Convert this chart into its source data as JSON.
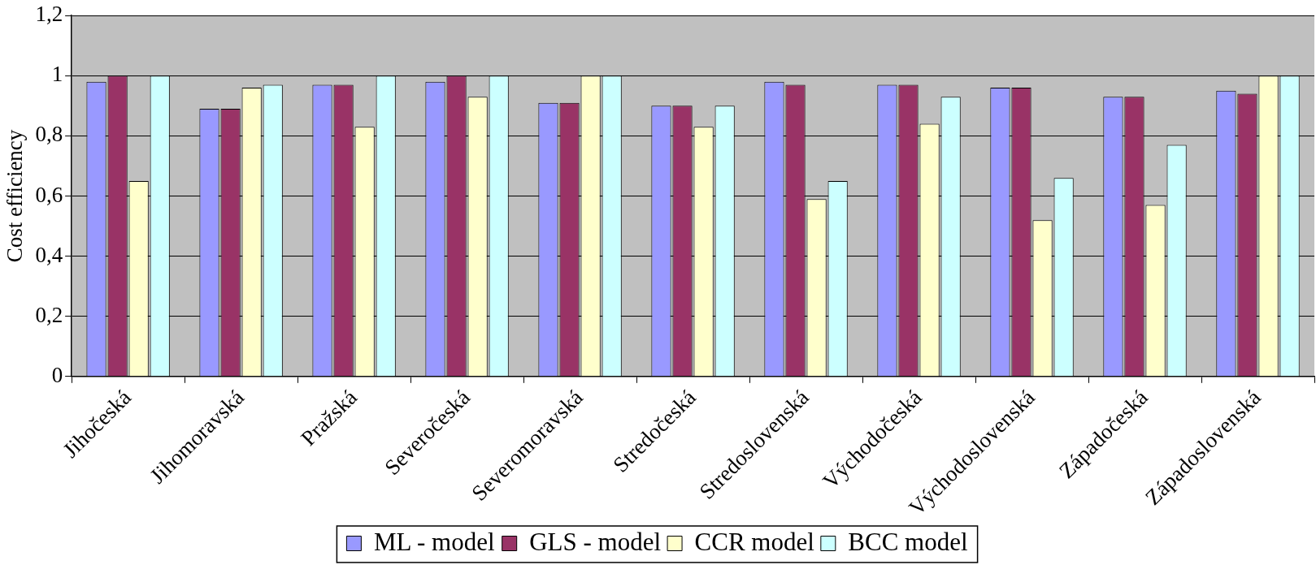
{
  "chart_data": {
    "type": "bar",
    "ylabel": "Cost efficiency",
    "categories": [
      "Jihočeská",
      "Jihomoravská",
      "Pražská",
      "Severočeská",
      "Severomoravská",
      "Stredočeská",
      "Stredoslovenská",
      "Východočeská",
      "Východoslovenská",
      "Západočeská",
      "Západoslovenská"
    ],
    "series": [
      {
        "name": "ML - model",
        "color": "#9999ff",
        "values": [
          0.98,
          0.89,
          0.97,
          0.98,
          0.91,
          0.9,
          0.98,
          0.97,
          0.96,
          0.93,
          0.95
        ]
      },
      {
        "name": "GLS - model",
        "color": "#993366",
        "values": [
          1.0,
          0.89,
          0.97,
          1.0,
          0.91,
          0.9,
          0.97,
          0.97,
          0.96,
          0.93,
          0.94
        ]
      },
      {
        "name": "CCR model",
        "color": "#ffffcc",
        "values": [
          0.65,
          0.96,
          0.83,
          0.93,
          1.0,
          0.83,
          0.59,
          0.84,
          0.52,
          0.57,
          1.0
        ]
      },
      {
        "name": "BCC model",
        "color": "#ccffff",
        "values": [
          1.0,
          0.97,
          1.0,
          1.0,
          1.0,
          0.9,
          0.65,
          0.93,
          0.66,
          0.77,
          1.0
        ]
      }
    ],
    "ylim": [
      0,
      1.2
    ],
    "yticks": [
      0,
      {
        "value": 0.2,
        "label": "0,2"
      },
      {
        "value": 0.4,
        "label": "0,4"
      },
      {
        "value": 0.6,
        "label": "0,6"
      },
      {
        "value": 0.8,
        "label": "0,8"
      },
      1,
      {
        "value": 1.2,
        "label": "1,2"
      }
    ],
    "grid": "y",
    "legend": "bottom"
  }
}
